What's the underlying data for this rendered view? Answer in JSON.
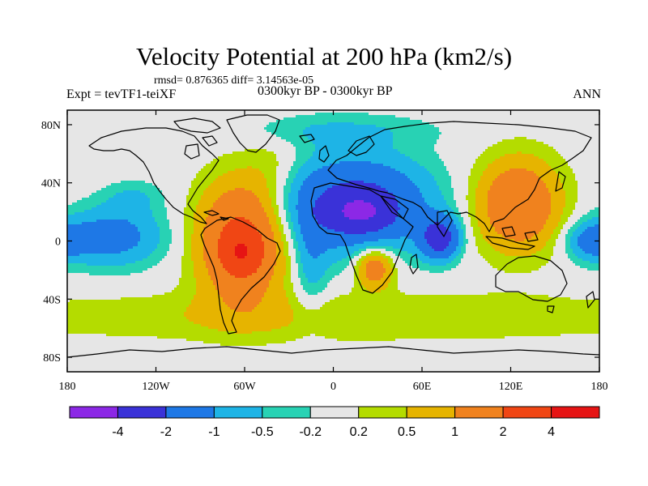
{
  "title": "Velocity Potential at 200 hPa (km2/s)",
  "stats": "rmsd= 0.876365  diff= 3.14563e-05",
  "expt": "Expt = tevTF1-teiXF",
  "period": "0300kyr BP - 0300kyr BP",
  "season": "ANN",
  "chart_data": {
    "type": "heatmap",
    "projection": "cylindrical-equidistant",
    "xlim": [
      -180,
      180
    ],
    "ylim": [
      -90,
      90
    ],
    "x_ticks": [
      {
        "value": -180,
        "label": "180"
      },
      {
        "value": -120,
        "label": "120W"
      },
      {
        "value": -60,
        "label": "60W"
      },
      {
        "value": 0,
        "label": "0"
      },
      {
        "value": 60,
        "label": "60E"
      },
      {
        "value": 120,
        "label": "120E"
      },
      {
        "value": 180,
        "label": "180"
      }
    ],
    "y_ticks": [
      {
        "value": 80,
        "label": "80N"
      },
      {
        "value": 40,
        "label": "40N"
      },
      {
        "value": 0,
        "label": "0"
      },
      {
        "value": -40,
        "label": "40S"
      },
      {
        "value": -80,
        "label": "80S"
      }
    ],
    "colorbar": {
      "labels": [
        "-4",
        "-2",
        "-1",
        "-0.5",
        "-0.2",
        "0.2",
        "0.5",
        "1",
        "2",
        "4"
      ],
      "colors": [
        "#8c28e6",
        "#3a32d8",
        "#1e78e6",
        "#1eb4e6",
        "#28d2b4",
        "#e6e6e6",
        "#b4dc00",
        "#e6b400",
        "#f0821e",
        "#f04614",
        "#e61414"
      ]
    },
    "fields": [
      {
        "name": "atlantic-africa-eurasia low",
        "lon": 15,
        "lat": 25,
        "sx": 34,
        "sy": 22,
        "amp": -2.5
      },
      {
        "name": "sahara core low",
        "lon": 18,
        "lat": 20,
        "sx": 13,
        "sy": 8,
        "amp": -2.4
      },
      {
        "name": "indian ocean low",
        "lon": 72,
        "lat": 2,
        "sx": 9,
        "sy": 10,
        "amp": -2.6
      },
      {
        "name": "arctic-north atlantic low",
        "lon": 0,
        "lat": 76,
        "sx": 48,
        "sy": 8,
        "amp": -0.5
      },
      {
        "name": "central pacific low",
        "lon": -150,
        "lat": 3,
        "sx": 24,
        "sy": 14,
        "amp": -1.4
      },
      {
        "name": "north pacific low",
        "lon": -135,
        "lat": 30,
        "sx": 14,
        "sy": 8,
        "amp": -0.5
      },
      {
        "name": "west pacific low",
        "lon": 175,
        "lat": 0,
        "sx": 12,
        "sy": 9,
        "amp": -1.2
      },
      {
        "name": "south atlantic trough",
        "lon": -15,
        "lat": -15,
        "sx": 8,
        "sy": 25,
        "amp": -0.7
      },
      {
        "name": "south america high",
        "lon": -62,
        "lat": 0,
        "sx": 20,
        "sy": 28,
        "amp": 2.5
      },
      {
        "name": "south america core",
        "lon": -62,
        "lat": -8,
        "sx": 8,
        "sy": 9,
        "amp": 2.0
      },
      {
        "name": "east asia high",
        "lon": 125,
        "lat": 25,
        "sx": 20,
        "sy": 22,
        "amp": 1.9
      },
      {
        "name": "southern africa high",
        "lon": 28,
        "lat": -18,
        "sx": 9,
        "sy": 10,
        "amp": 1.7
      },
      {
        "name": "southern ocean ridge",
        "lon": 0,
        "lat": -52,
        "sx": 180,
        "sy": 12,
        "amp": 0.5
      },
      {
        "name": "north atlantic ridge",
        "lon": -40,
        "lat": 50,
        "sx": 14,
        "sy": 18,
        "amp": 0.35
      }
    ]
  }
}
